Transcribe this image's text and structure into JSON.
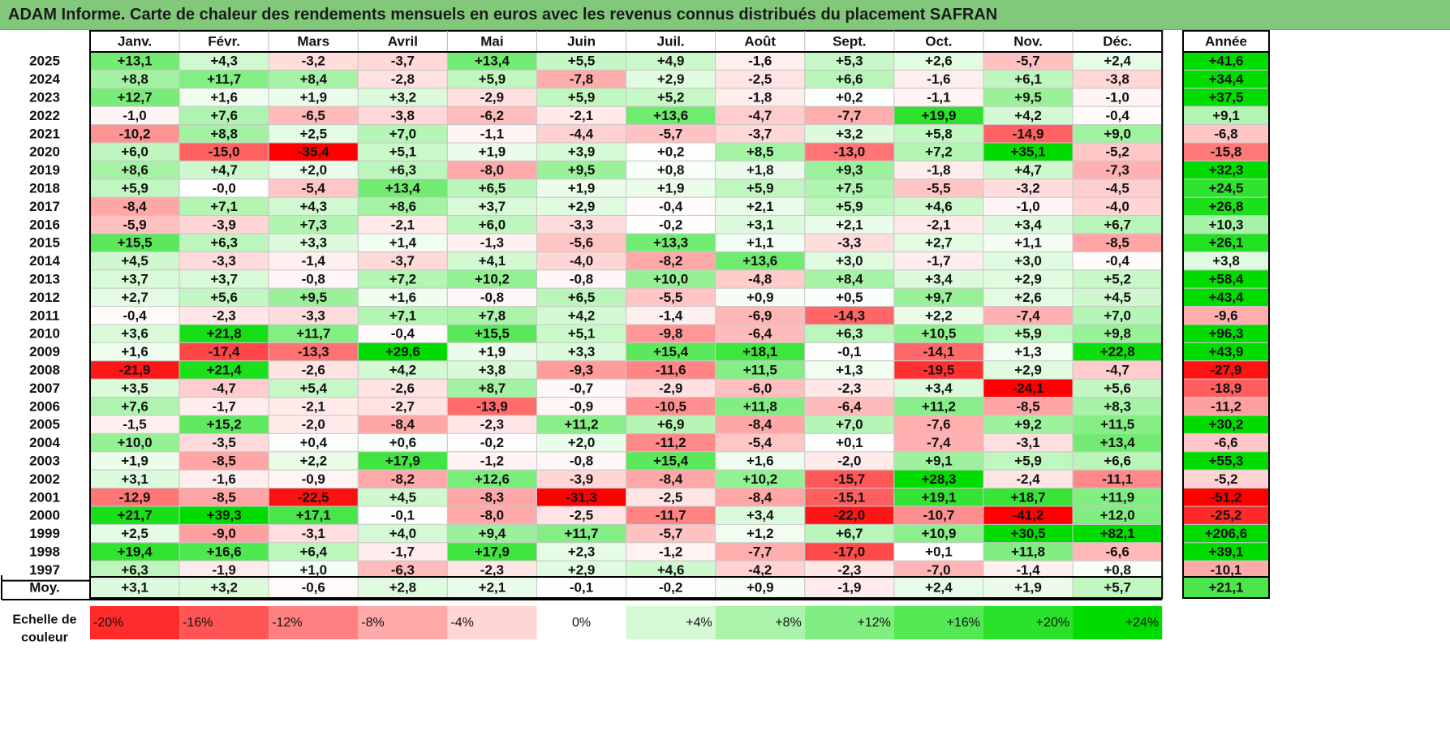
{
  "title": "ADAM Informe. Carte de chaleur des rendements mensuels en euros avec les revenus connus distribués du placement SAFRAN",
  "chart_data": {
    "type": "heatmap",
    "months": [
      "Janv.",
      "Févr.",
      "Mars",
      "Avril",
      "Mai",
      "Juin",
      "Juil.",
      "Août",
      "Sept.",
      "Oct.",
      "Nov.",
      "Déc."
    ],
    "year_header": "Année",
    "rows": [
      {
        "year": "2025",
        "values": [
          "+13,1",
          "+4,3",
          "-3,2",
          "-3,7",
          "+13,4",
          "+5,5",
          "+4,9",
          "-1,6",
          "+5,3",
          "+2,6",
          "-5,7",
          "+2,4"
        ],
        "total": "+41,6"
      },
      {
        "year": "2024",
        "values": [
          "+8,8",
          "+11,7",
          "+8,4",
          "-2,8",
          "+5,9",
          "-7,8",
          "+2,9",
          "-2,5",
          "+6,6",
          "-1,6",
          "+6,1",
          "-3,8"
        ],
        "total": "+34,4"
      },
      {
        "year": "2023",
        "values": [
          "+12,7",
          "+1,6",
          "+1,9",
          "+3,2",
          "-2,9",
          "+5,9",
          "+5,2",
          "-1,8",
          "+0,2",
          "-1,1",
          "+9,5",
          "-1,0"
        ],
        "total": "+37,5"
      },
      {
        "year": "2022",
        "values": [
          "-1,0",
          "+7,6",
          "-6,5",
          "-3,8",
          "-6,2",
          "-2,1",
          "+13,6",
          "-4,7",
          "-7,7",
          "+19,9",
          "+4,2",
          "-0,4"
        ],
        "total": "+9,1"
      },
      {
        "year": "2021",
        "values": [
          "-10,2",
          "+8,8",
          "+2,5",
          "+7,0",
          "-1,1",
          "-4,4",
          "-5,7",
          "-3,7",
          "+3,2",
          "+5,8",
          "-14,9",
          "+9,0"
        ],
        "total": "-6,8"
      },
      {
        "year": "2020",
        "values": [
          "+6,0",
          "-15,0",
          "-35,4",
          "+5,1",
          "+1,9",
          "+3,9",
          "+0,2",
          "+8,5",
          "-13,0",
          "+7,2",
          "+35,1",
          "-5,2"
        ],
        "total": "-15,8"
      },
      {
        "year": "2019",
        "values": [
          "+8,6",
          "+4,7",
          "+2,0",
          "+6,3",
          "-8,0",
          "+9,5",
          "+0,8",
          "+1,8",
          "+9,3",
          "-1,8",
          "+4,7",
          "-7,3"
        ],
        "total": "+32,3"
      },
      {
        "year": "2018",
        "values": [
          "+5,9",
          "-0,0",
          "-5,4",
          "+13,4",
          "+6,5",
          "+1,9",
          "+1,9",
          "+5,9",
          "+7,5",
          "-5,5",
          "-3,2",
          "-4,5"
        ],
        "total": "+24,5"
      },
      {
        "year": "2017",
        "values": [
          "-8,4",
          "+7,1",
          "+4,3",
          "+8,6",
          "+3,7",
          "+2,9",
          "-0,4",
          "+2,1",
          "+5,9",
          "+4,6",
          "-1,0",
          "-4,0"
        ],
        "total": "+26,8"
      },
      {
        "year": "2016",
        "values": [
          "-5,9",
          "-3,9",
          "+7,3",
          "-2,1",
          "+6,0",
          "-3,3",
          "-0,2",
          "+3,1",
          "+2,1",
          "-2,1",
          "+3,4",
          "+6,7"
        ],
        "total": "+10,3"
      },
      {
        "year": "2015",
        "values": [
          "+15,5",
          "+6,3",
          "+3,3",
          "+1,4",
          "-1,3",
          "-5,6",
          "+13,3",
          "+1,1",
          "-3,3",
          "+2,7",
          "+1,1",
          "-8,5"
        ],
        "total": "+26,1"
      },
      {
        "year": "2014",
        "values": [
          "+4,5",
          "-3,3",
          "-1,4",
          "-3,7",
          "+4,1",
          "-4,0",
          "-8,2",
          "+13,6",
          "+3,0",
          "-1,7",
          "+3,0",
          "-0,4"
        ],
        "total": "+3,8"
      },
      {
        "year": "2013",
        "values": [
          "+3,7",
          "+3,7",
          "-0,8",
          "+7,2",
          "+10,2",
          "-0,8",
          "+10,0",
          "-4,8",
          "+8,4",
          "+3,4",
          "+2,9",
          "+5,2"
        ],
        "total": "+58,4"
      },
      {
        "year": "2012",
        "values": [
          "+2,7",
          "+5,6",
          "+9,5",
          "+1,6",
          "-0,8",
          "+6,5",
          "-5,5",
          "+0,9",
          "+0,5",
          "+9,7",
          "+2,6",
          "+4,5"
        ],
        "total": "+43,4"
      },
      {
        "year": "2011",
        "values": [
          "-0,4",
          "-2,3",
          "-3,3",
          "+7,1",
          "+7,8",
          "+4,2",
          "-1,4",
          "-6,9",
          "-14,3",
          "+2,2",
          "-7,4",
          "+7,0"
        ],
        "total": "-9,6"
      },
      {
        "year": "2010",
        "values": [
          "+3,6",
          "+21,8",
          "+11,7",
          "-0,4",
          "+15,5",
          "+5,1",
          "-9,8",
          "-6,4",
          "+6,3",
          "+10,5",
          "+5,9",
          "+9,8"
        ],
        "total": "+96,3"
      },
      {
        "year": "2009",
        "values": [
          "+1,6",
          "-17,4",
          "-13,3",
          "+29,6",
          "+1,9",
          "+3,3",
          "+15,4",
          "+18,1",
          "-0,1",
          "-14,1",
          "+1,3",
          "+22,8"
        ],
        "total": "+43,9"
      },
      {
        "year": "2008",
        "values": [
          "-21,9",
          "+21,4",
          "-2,6",
          "+4,2",
          "+3,8",
          "-9,3",
          "-11,6",
          "+11,5",
          "+1,3",
          "-19,5",
          "+2,9",
          "-4,7"
        ],
        "total": "-27,9"
      },
      {
        "year": "2007",
        "values": [
          "+3,5",
          "-4,7",
          "+5,4",
          "-2,6",
          "+8,7",
          "-0,7",
          "-2,9",
          "-6,0",
          "-2,3",
          "+3,4",
          "-24,1",
          "+5,6"
        ],
        "total": "-18,9"
      },
      {
        "year": "2006",
        "values": [
          "+7,6",
          "-1,7",
          "-2,1",
          "-2,7",
          "-13,9",
          "-0,9",
          "-10,5",
          "+11,8",
          "-6,4",
          "+11,2",
          "-8,5",
          "+8,3"
        ],
        "total": "-11,2"
      },
      {
        "year": "2005",
        "values": [
          "-1,5",
          "+15,2",
          "-2,0",
          "-8,4",
          "-2,3",
          "+11,2",
          "+6,9",
          "-8,4",
          "+7,0",
          "-7,6",
          "+9,2",
          "+11,5"
        ],
        "total": "+30,2"
      },
      {
        "year": "2004",
        "values": [
          "+10,0",
          "-3,5",
          "+0,4",
          "+0,6",
          "-0,2",
          "+2,0",
          "-11,2",
          "-5,4",
          "+0,1",
          "-7,4",
          "-3,1",
          "+13,4"
        ],
        "total": "-6,6"
      },
      {
        "year": "2003",
        "values": [
          "+1,9",
          "-8,5",
          "+2,2",
          "+17,9",
          "-1,2",
          "-0,8",
          "+15,4",
          "+1,6",
          "-2,0",
          "+9,1",
          "+5,9",
          "+6,6"
        ],
        "total": "+55,3"
      },
      {
        "year": "2002",
        "values": [
          "+3,1",
          "-1,6",
          "-0,9",
          "-8,2",
          "+12,6",
          "-3,9",
          "-8,4",
          "+10,2",
          "-15,7",
          "+28,3",
          "-2,4",
          "-11,1"
        ],
        "total": "-5,2"
      },
      {
        "year": "2001",
        "values": [
          "-12,9",
          "-8,5",
          "-22,5",
          "+4,5",
          "-8,3",
          "-31,3",
          "-2,5",
          "-8,4",
          "-15,1",
          "+19,1",
          "+18,7",
          "+11,9"
        ],
        "total": "-51,2"
      },
      {
        "year": "2000",
        "values": [
          "+21,7",
          "+39,3",
          "+17,1",
          "-0,1",
          "-8,0",
          "-2,5",
          "-11,7",
          "+3,4",
          "-22,0",
          "-10,7",
          "-41,2",
          "+12,0"
        ],
        "total": "-25,2"
      },
      {
        "year": "1999",
        "values": [
          "+2,5",
          "-9,0",
          "-3,1",
          "+4,0",
          "+9,4",
          "+11,7",
          "-5,7",
          "+1,2",
          "+6,7",
          "+10,9",
          "+30,5",
          "+82,1"
        ],
        "total": "+206,6"
      },
      {
        "year": "1998",
        "values": [
          "+19,4",
          "+16,6",
          "+6,4",
          "-1,7",
          "+17,9",
          "+2,3",
          "-1,2",
          "-7,7",
          "-17,0",
          "+0,1",
          "+11,8",
          "-6,6"
        ],
        "total": "+39,1"
      },
      {
        "year": "1997",
        "values": [
          "+6,3",
          "-1,9",
          "+1,0",
          "-6,3",
          "-2,3",
          "+2,9",
          "+4,6",
          "-4,2",
          "-2,3",
          "-7,0",
          "-1,4",
          "+0,8"
        ],
        "total": "-10,1"
      }
    ],
    "average": {
      "label": "Moy.",
      "values": [
        "+3,1",
        "+3,2",
        "-0,6",
        "+2,8",
        "+2,1",
        "-0,1",
        "-0,2",
        "+0,9",
        "-1,9",
        "+2,4",
        "+1,9",
        "+5,7"
      ],
      "total": "+21,1"
    },
    "scale": {
      "label_line1": "Echelle de",
      "label_line2": "couleur",
      "steps": [
        "-20%",
        "-16%",
        "-12%",
        "-8%",
        "-4%",
        "0%",
        "+4%",
        "+8%",
        "+12%",
        "+16%",
        "+20%",
        "+24%"
      ],
      "step_values": [
        -20,
        -16,
        -12,
        -8,
        -4,
        0,
        4,
        8,
        12,
        16,
        20,
        24
      ]
    },
    "colors": {
      "negative": "#ff0000",
      "positive": "#00dc00",
      "neutral": "#ffffff",
      "title_bar": "#82c87a"
    }
  }
}
